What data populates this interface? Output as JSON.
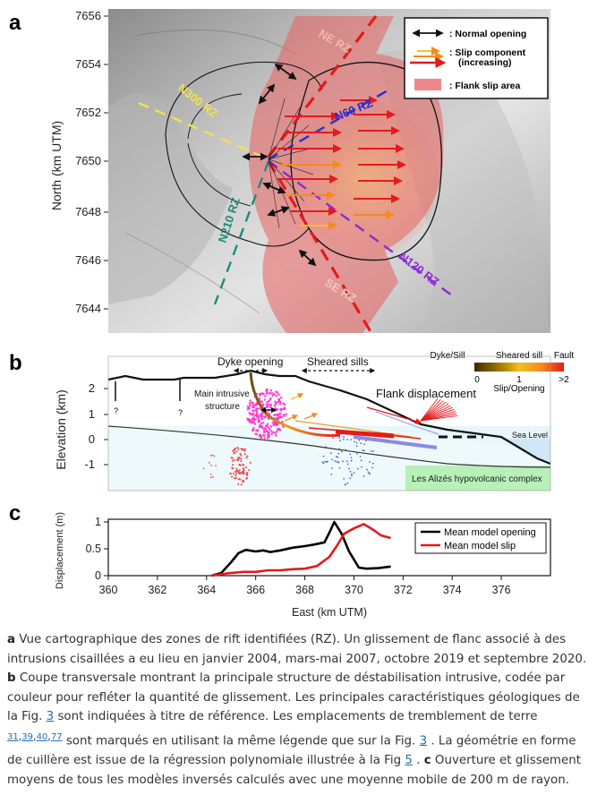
{
  "panels": {
    "a": {
      "letter": "a",
      "ylabel": "North (km UTM)",
      "yticks": [
        "7656",
        "7654",
        "7652",
        "7650",
        "7648",
        "7646",
        "7644"
      ],
      "zone_labels": {
        "ne": "NE RZ",
        "n300": "N300 RZ",
        "n60": "N60 RZ",
        "n210": "N210 RZ",
        "n120": "N120 RZ",
        "se": "SE RZ"
      },
      "legend": {
        "normal_opening": ": Normal opening",
        "slip_component": ": Slip component",
        "slip_increasing": "(increasing)",
        "flank_slip": ": Flank slip area"
      }
    },
    "b": {
      "letter": "b",
      "ylabel": "Elevation (km)",
      "yticks": [
        "2",
        "1",
        "0",
        "-1"
      ],
      "dyke_opening": "Dyke opening",
      "sheared_sills": "Sheared sills",
      "main_intrusive_1": "Main intrusive",
      "main_intrusive_2": "structure",
      "flank_displacement": "Flank displacement",
      "sea_level": "Sea Level",
      "hypovolcanic": "Les Alizés hypovolcanic complex",
      "question_mark": "?",
      "colorbar": {
        "title_dyke": "Dyke/Sill",
        "title_sheared": "Sheared sill",
        "title_fault": "Fault",
        "tick_0": "0",
        "tick_1": "1",
        "tick_2": ">2",
        "label": "Slip/Opening"
      }
    },
    "c": {
      "letter": "c",
      "ylabel": "Displacement (m)",
      "xlabel": "East (km UTM)",
      "legend_opening": "Mean model opening",
      "legend_slip": "Mean model slip"
    }
  },
  "chart_data": {
    "type": "line",
    "xlabel": "East (km UTM)",
    "ylabel": "Displacement (m)",
    "xlim": [
      360,
      378
    ],
    "ylim": [
      0,
      1.05
    ],
    "xticks": [
      360,
      362,
      364,
      366,
      368,
      370,
      372,
      374,
      376
    ],
    "yticks": [
      0,
      0.5,
      1
    ],
    "legend": "top-right",
    "series": [
      {
        "name": "Mean model opening",
        "color": "#000000",
        "points": [
          [
            364.2,
            0.0
          ],
          [
            364.6,
            0.05
          ],
          [
            365.0,
            0.25
          ],
          [
            365.3,
            0.42
          ],
          [
            365.6,
            0.48
          ],
          [
            366.0,
            0.45
          ],
          [
            366.3,
            0.47
          ],
          [
            366.6,
            0.44
          ],
          [
            367.0,
            0.47
          ],
          [
            367.5,
            0.52
          ],
          [
            368.0,
            0.55
          ],
          [
            368.4,
            0.58
          ],
          [
            368.8,
            0.62
          ],
          [
            369.0,
            0.8
          ],
          [
            369.2,
            1.0
          ],
          [
            369.5,
            0.78
          ],
          [
            369.8,
            0.45
          ],
          [
            370.2,
            0.15
          ],
          [
            370.5,
            0.13
          ],
          [
            371.0,
            0.14
          ],
          [
            371.5,
            0.17
          ]
        ]
      },
      {
        "name": "Mean model slip",
        "color": "#e31a1c",
        "points": [
          [
            364.2,
            0.0
          ],
          [
            364.8,
            0.04
          ],
          [
            365.5,
            0.07
          ],
          [
            366.0,
            0.07
          ],
          [
            366.5,
            0.1
          ],
          [
            367.0,
            0.1
          ],
          [
            367.5,
            0.12
          ],
          [
            368.0,
            0.13
          ],
          [
            368.5,
            0.18
          ],
          [
            369.0,
            0.35
          ],
          [
            369.3,
            0.55
          ],
          [
            369.6,
            0.78
          ],
          [
            370.0,
            0.88
          ],
          [
            370.4,
            0.96
          ],
          [
            370.8,
            0.85
          ],
          [
            371.1,
            0.75
          ],
          [
            371.5,
            0.7
          ]
        ]
      }
    ]
  },
  "caption": {
    "a_letter": "a",
    "a_text": " Vue cartographique des zones de rift identifiées (RZ). Un glissement de flanc associé à des intrusions cisaillées a eu lieu en janvier 2004, mars-mai 2007, octobre 2019 et septembre 2020. ",
    "b_letter": "b",
    "b_text1": " Coupe transversale montrant la principale structure de déstabilisation intrusive, codée par couleur pour refléter la quantité de glissement. Les principales caractéristiques géologiques de la Fig. ",
    "fig3_a": "3",
    "b_text2": " sont indiquées à titre de référence. Les emplacements de tremblement de terre ",
    "ref31": "31",
    "ref39": "39",
    "ref40": "40",
    "ref77": "77",
    "b_text3": " sont marqués en utilisant la même légende que sur la Fig. ",
    "fig3_b": "3",
    "b_text4": " . La géométrie en forme de cuillère est issue de la régression polynomiale illustrée à la Fig ",
    "fig5": "5",
    "b_text5": " . ",
    "c_letter": "c",
    "c_text": " Ouverture et glissement moyens de tous les modèles inversés calculés avec une moyenne mobile de 200 m de rayon."
  },
  "colors": {
    "flank_red": "#e8605f",
    "ne_se_dash": "#e31a1c",
    "n300_dash": "#f2e24a",
    "n60_dash": "#2b2bd6",
    "n210_dash": "#1f8a7d",
    "n120_dash": "#8a2bd6",
    "hypovolcanic_green": "#b8f0b8"
  }
}
